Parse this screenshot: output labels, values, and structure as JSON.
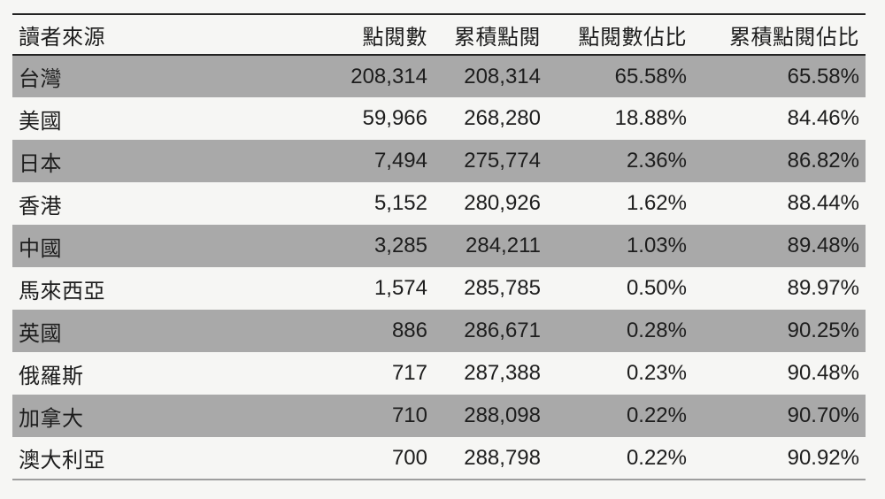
{
  "page": {
    "background": "#f6f6f4"
  },
  "colors": {
    "row_alt": "#a9a9a9",
    "border_dark": "#232323",
    "border_soft": "#9e9e9e",
    "text": "#1d1d1d"
  },
  "chart_data": {
    "type": "table",
    "title": "",
    "columns": [
      "讀者來源",
      "點閱數",
      "累積點閱",
      "點閱數佔比",
      "累積點閱佔比"
    ],
    "column_aligns": [
      "left",
      "right",
      "right",
      "right",
      "right"
    ],
    "rows": [
      [
        "台灣",
        "208,314",
        "208,314",
        "65.58%",
        "65.58%"
      ],
      [
        "美國",
        "59,966",
        "268,280",
        "18.88%",
        "84.46%"
      ],
      [
        "日本",
        "7,494",
        "275,774",
        "2.36%",
        "86.82%"
      ],
      [
        "香港",
        "5,152",
        "280,926",
        "1.62%",
        "88.44%"
      ],
      [
        "中國",
        "3,285",
        "284,211",
        "1.03%",
        "89.48%"
      ],
      [
        "馬來西亞",
        "1,574",
        "285,785",
        "0.50%",
        "89.97%"
      ],
      [
        "英國",
        "886",
        "286,671",
        "0.28%",
        "90.25%"
      ],
      [
        "俄羅斯",
        "717",
        "287,388",
        "0.23%",
        "90.48%"
      ],
      [
        "加拿大",
        "710",
        "288,098",
        "0.22%",
        "90.70%"
      ],
      [
        "澳大利亞",
        "700",
        "288,798",
        "0.22%",
        "90.92%"
      ]
    ],
    "layout": {
      "grid": "off",
      "alternating_row_shading": true,
      "shaded_rows": "odd (1st, 3rd, 5th, 7th, 9th)"
    }
  }
}
